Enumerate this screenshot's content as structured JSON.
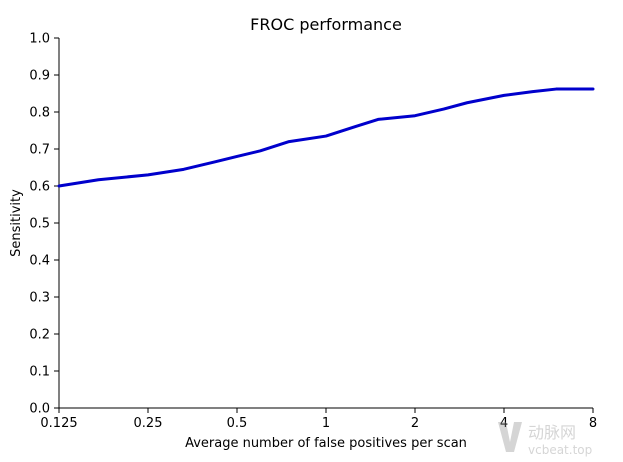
{
  "chart_data": {
    "type": "line",
    "title": "FROC performance",
    "xlabel": "Average number of false positives per scan",
    "ylabel": "Sensitivity",
    "x_scale": "log2",
    "xlim": [
      0.125,
      8
    ],
    "ylim": [
      0.0,
      1.0
    ],
    "x_ticks": [
      0.125,
      0.25,
      0.5,
      1,
      2,
      4,
      8
    ],
    "x_tick_labels": [
      "0.125",
      "0.25",
      "0.5",
      "1",
      "2",
      "4",
      "8"
    ],
    "y_ticks": [
      0.0,
      0.1,
      0.2,
      0.3,
      0.4,
      0.5,
      0.6,
      0.7,
      0.8,
      0.9,
      1.0
    ],
    "y_tick_labels": [
      "0.0",
      "0.1",
      "0.2",
      "0.3",
      "0.4",
      "0.5",
      "0.6",
      "0.7",
      "0.8",
      "0.9",
      "1.0"
    ],
    "grid": false,
    "line_color": "#0000cc",
    "series": [
      {
        "x": [
          0.125,
          0.17,
          0.25,
          0.33,
          0.42,
          0.5,
          0.6,
          0.75,
          1.0,
          1.25,
          1.5,
          2.0,
          2.5,
          3.0,
          4.0,
          5.0,
          6.0,
          8.0
        ],
        "values": [
          0.6,
          0.617,
          0.63,
          0.645,
          0.665,
          0.68,
          0.695,
          0.72,
          0.735,
          0.76,
          0.78,
          0.79,
          0.808,
          0.825,
          0.845,
          0.855,
          0.862,
          0.862
        ]
      }
    ]
  },
  "watermark": {
    "brand": "动脉网",
    "url": "vcbeat.top"
  }
}
